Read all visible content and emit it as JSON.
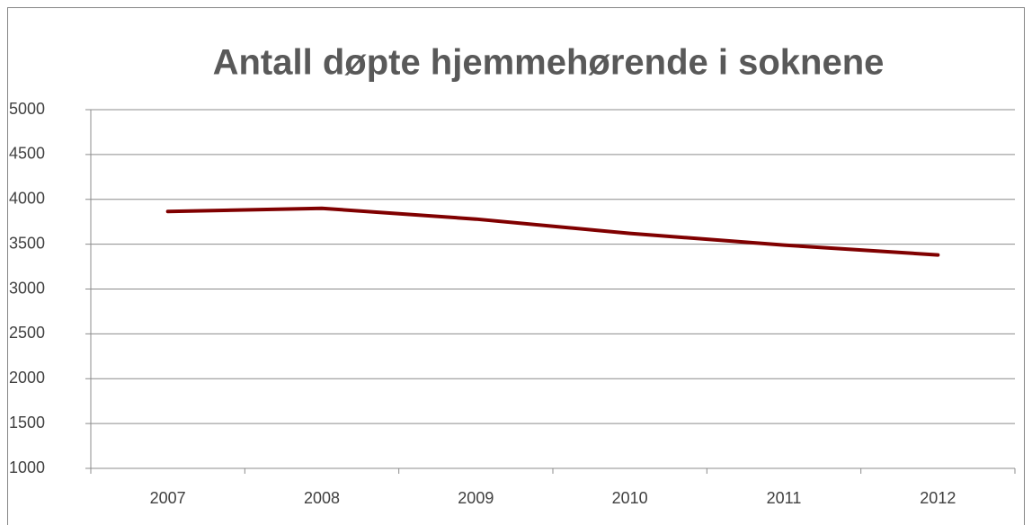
{
  "chart_data": {
    "type": "line",
    "title": "Antall døpte hjemmehørende i soknene",
    "categories": [
      "2007",
      "2008",
      "2009",
      "2010",
      "2011",
      "2012"
    ],
    "series": [
      {
        "name": "Antall døpte",
        "color": "#800000",
        "values": [
          3865,
          3900,
          3780,
          3620,
          3490,
          3380
        ]
      }
    ],
    "ylim": [
      1000,
      5000
    ],
    "yticks": [
      1000,
      1500,
      2000,
      2500,
      3000,
      3500,
      4000,
      4500,
      5000
    ],
    "grid": true
  }
}
